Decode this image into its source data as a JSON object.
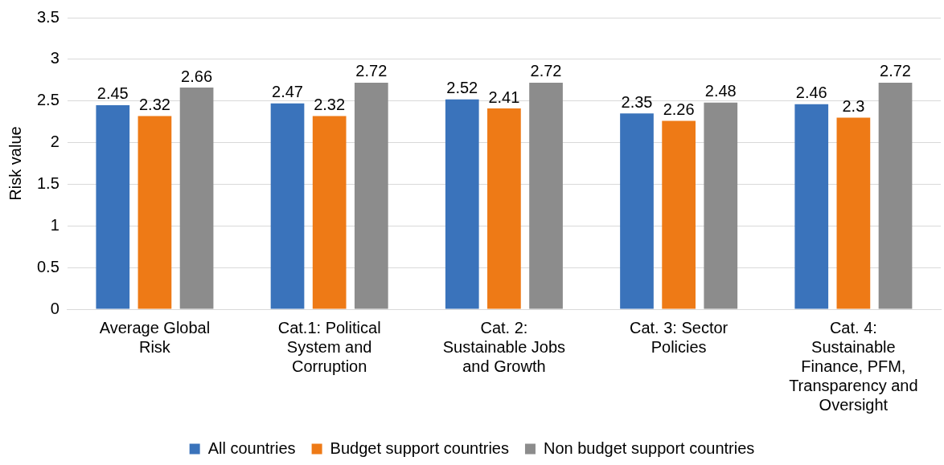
{
  "chart_data": {
    "type": "bar",
    "ylabel": "Risk value",
    "categories": [
      "Average Global Risk",
      "Cat.1: Political System and Corruption",
      "Cat. 2: Sustainable Jobs and Growth",
      "Cat. 3: Sector Policies",
      "Cat. 4: Sustainable Finance, PFM, Transparency and Oversight"
    ],
    "series": [
      {
        "name": "All countries",
        "color": "#3a73bb",
        "values": [
          2.45,
          2.47,
          2.52,
          2.35,
          2.46
        ]
      },
      {
        "name": "Budget support countries",
        "color": "#ee7a16",
        "values": [
          2.32,
          2.32,
          2.41,
          2.26,
          2.3
        ]
      },
      {
        "name": "Non budget support countries",
        "color": "#8c8c8c",
        "values": [
          2.66,
          2.72,
          2.72,
          2.48,
          2.72
        ]
      }
    ],
    "ylim": [
      0,
      3.5
    ],
    "yticks": [
      0,
      0.5,
      1,
      1.5,
      2,
      2.5,
      3,
      3.5
    ],
    "grid": "y",
    "legend": "bottom",
    "data_labels": true
  }
}
